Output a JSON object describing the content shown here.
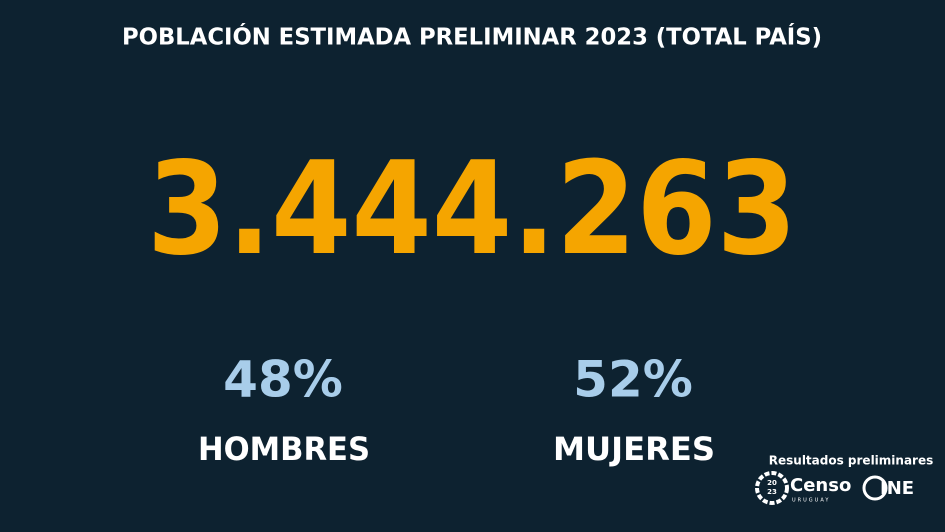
{
  "header": {
    "title": "POBLACIÓN ESTIMADA PRELIMINAR 2023 (TOTAL PAÍS)"
  },
  "total": "3.444.263",
  "stats": [
    {
      "value": "48%",
      "label": "HOMBRES"
    },
    {
      "value": "52%",
      "label": "MUJERES"
    }
  ],
  "footer": {
    "caption": "Resultados preliminares",
    "censo_logo": {
      "year_top": "20",
      "year_bottom": "23",
      "name": "Censo",
      "country": "URUGUAY"
    },
    "ine_logo": {
      "name": "INE"
    }
  }
}
